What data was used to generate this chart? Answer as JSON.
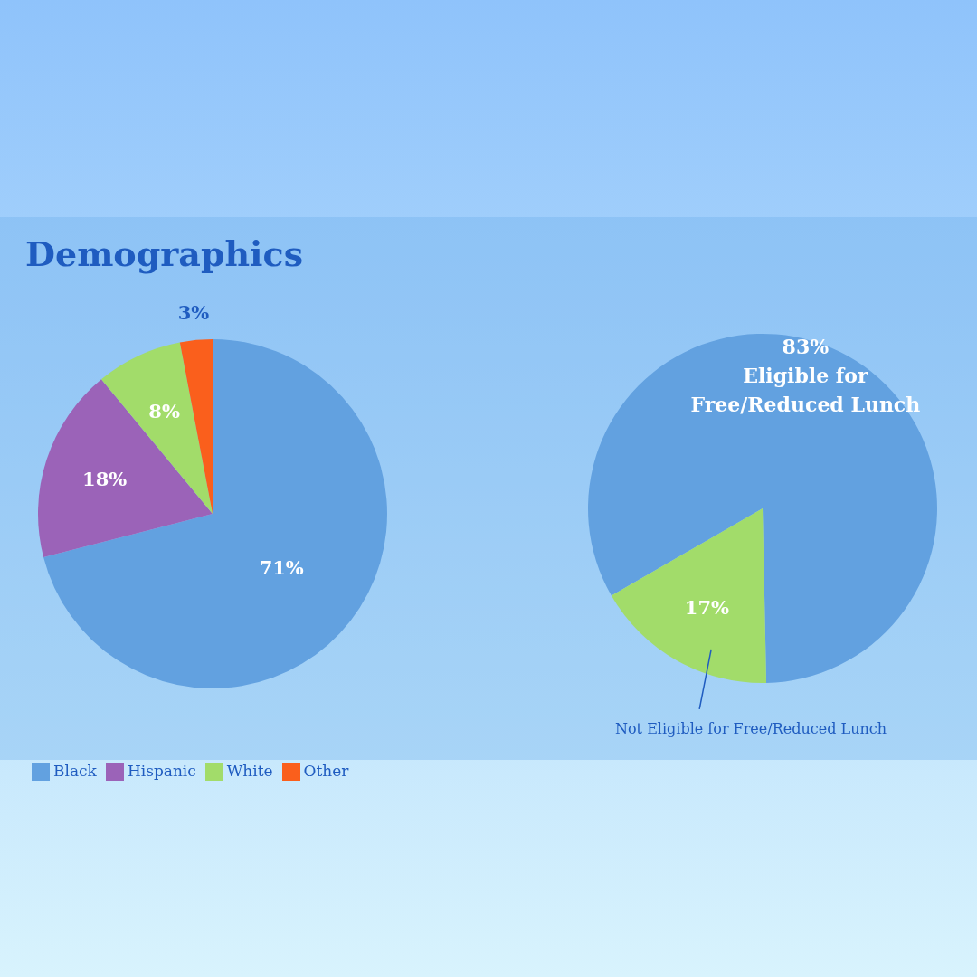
{
  "chart_data": [
    {
      "type": "pie",
      "title": "Demographics",
      "categories": [
        "Black",
        "Hispanic",
        "White",
        "Other"
      ],
      "values": [
        71,
        18,
        8,
        3
      ],
      "colors": [
        "#62a1e0",
        "#9b63b8",
        "#a2dc6a",
        "#fa5f1c"
      ],
      "value_labels": [
        "71%",
        "18%",
        "8%",
        "3%"
      ],
      "legend": "bottom left"
    },
    {
      "type": "pie",
      "categories": [
        "Eligible for Free/Reduced Lunch",
        "Not Eligible for Free/Reduced Lunch"
      ],
      "values": [
        83,
        17
      ],
      "colors": [
        "#62a1e0",
        "#a2dc6a"
      ],
      "value_labels": [
        "83%",
        "17%"
      ]
    }
  ]
}
